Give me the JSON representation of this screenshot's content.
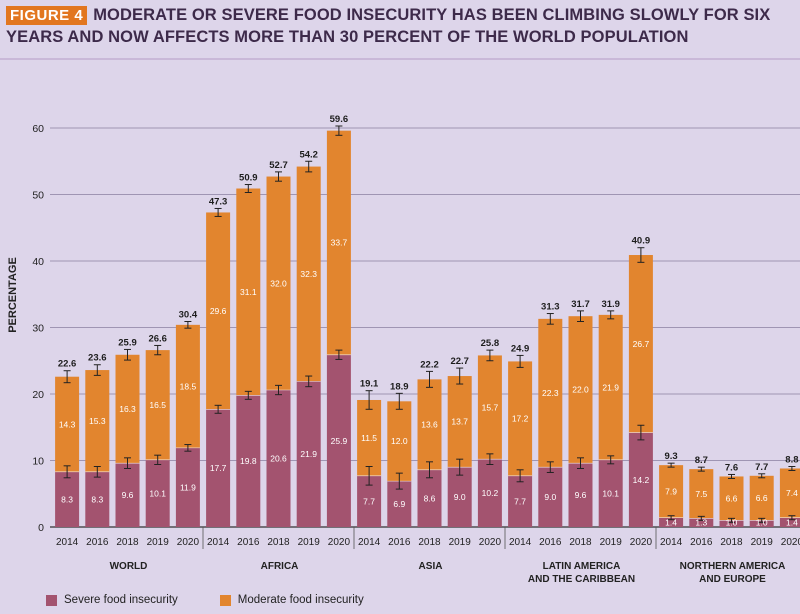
{
  "header": {
    "badge": "FIGURE 4",
    "title": "MODERATE OR SEVERE FOOD INSECURITY HAS BEEN CLIMBING SLOWLY FOR SIX YEARS AND NOW AFFECTS MORE THAN 30 PERCENT OF THE WORLD POPULATION"
  },
  "colors": {
    "severe": "#a3536f",
    "moderate": "#e2852e",
    "background": "#ddd5ea",
    "badge": "#e2761f"
  },
  "legend": {
    "severe": "Severe food insecurity",
    "moderate": "Moderate food insecurity"
  },
  "chart_data": {
    "type": "bar",
    "stacked": true,
    "title": "MODERATE OR SEVERE FOOD INSECURITY HAS BEEN CLIMBING SLOWLY FOR SIX YEARS AND NOW AFFECTS MORE THAN 30 PERCENT OF THE WORLD POPULATION",
    "ylabel": "PERCENTAGE",
    "xlabel": "",
    "ylim": [
      0,
      60
    ],
    "yticks": [
      0,
      10,
      20,
      30,
      40,
      50,
      60
    ],
    "grid": true,
    "legend_position": "bottom-left",
    "groups": [
      {
        "label": [
          "WORLD"
        ],
        "years": [
          "2014",
          "2016",
          "2018",
          "2019",
          "2020"
        ],
        "severe": [
          8.3,
          8.3,
          9.6,
          10.1,
          11.9
        ],
        "moderate": [
          14.3,
          15.3,
          16.3,
          16.5,
          18.5
        ],
        "totals": [
          22.6,
          23.6,
          25.9,
          26.6,
          30.4
        ],
        "error": [
          0.9,
          0.8,
          0.8,
          0.7,
          0.5
        ]
      },
      {
        "label": [
          "AFRICA"
        ],
        "years": [
          "2014",
          "2016",
          "2018",
          "2019",
          "2020"
        ],
        "severe": [
          17.7,
          19.8,
          20.6,
          21.9,
          25.9
        ],
        "moderate": [
          29.6,
          31.1,
          32.0,
          32.3,
          33.7
        ],
        "totals": [
          47.3,
          50.9,
          52.7,
          54.2,
          59.6
        ],
        "error": [
          0.6,
          0.6,
          0.7,
          0.8,
          0.7
        ]
      },
      {
        "label": [
          "ASIA"
        ],
        "years": [
          "2014",
          "2016",
          "2018",
          "2019",
          "2020"
        ],
        "severe": [
          7.7,
          6.9,
          8.6,
          9.0,
          10.2
        ],
        "moderate": [
          11.5,
          12.0,
          13.6,
          13.7,
          15.7
        ],
        "totals": [
          19.1,
          18.9,
          22.2,
          22.7,
          25.8
        ],
        "error": [
          1.4,
          1.2,
          1.2,
          1.2,
          0.8
        ]
      },
      {
        "label": [
          "LATIN AMERICA",
          "AND THE CARIBBEAN"
        ],
        "years": [
          "2014",
          "2016",
          "2018",
          "2019",
          "2020"
        ],
        "severe": [
          7.7,
          9.0,
          9.6,
          10.1,
          14.2
        ],
        "moderate": [
          17.2,
          22.3,
          22.0,
          21.9,
          26.7
        ],
        "totals": [
          24.9,
          31.3,
          31.7,
          31.9,
          40.9
        ],
        "error": [
          0.9,
          0.8,
          0.8,
          0.6,
          1.1
        ]
      },
      {
        "label": [
          "NORTHERN AMERICA",
          "AND EUROPE"
        ],
        "years": [
          "2014",
          "2016",
          "2018",
          "2019",
          "2020"
        ],
        "severe": [
          1.4,
          1.3,
          1.0,
          1.0,
          1.4
        ],
        "moderate": [
          7.9,
          7.5,
          6.6,
          6.6,
          7.4
        ],
        "totals": [
          9.3,
          8.7,
          7.6,
          7.7,
          8.8
        ],
        "error": [
          0.3,
          0.3,
          0.3,
          0.3,
          0.3
        ]
      }
    ]
  }
}
